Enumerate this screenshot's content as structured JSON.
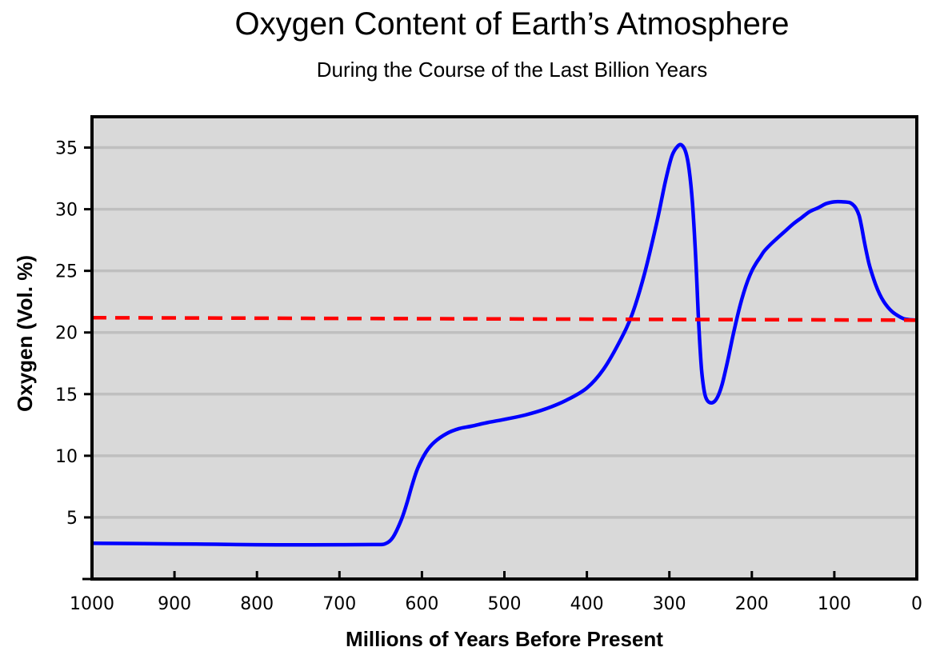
{
  "chart_data": {
    "type": "line",
    "title": "Oxygen Content of Earth’s Atmosphere",
    "subtitle": "During the Course of the Last Billion Years",
    "xlabel": "Millions of Years Before Present",
    "ylabel": "Oxygen (Vol. %)",
    "xlim": [
      1000,
      0
    ],
    "ylim": [
      0,
      37.5
    ],
    "x_ticks": [
      1000,
      900,
      800,
      700,
      600,
      500,
      400,
      300,
      200,
      100,
      0
    ],
    "y_ticks": [
      5,
      10,
      15,
      20,
      25,
      30,
      35
    ],
    "grid": "horizontal",
    "series": [
      {
        "color": "#0000ff",
        "x": [
          1000,
          950,
          900,
          850,
          800,
          750,
          700,
          660,
          645,
          635,
          625,
          618,
          612,
          605,
          595,
          585,
          570,
          555,
          540,
          520,
          500,
          475,
          450,
          425,
          400,
          380,
          360,
          345,
          330,
          315,
          305,
          297,
          290,
          285,
          280,
          276,
          272,
          268,
          265,
          263,
          261,
          259,
          257,
          255,
          252,
          248,
          244,
          240,
          236,
          232,
          228,
          224,
          220,
          215,
          210,
          205,
          200,
          195,
          190,
          185,
          178,
          170,
          160,
          150,
          140,
          130,
          120,
          110,
          100,
          90,
          82,
          78,
          74,
          70,
          67,
          64,
          61,
          58,
          55,
          50,
          45,
          40,
          35,
          30,
          25,
          20,
          15,
          10,
          5,
          0
        ],
        "y": [
          2.9,
          2.88,
          2.85,
          2.82,
          2.78,
          2.77,
          2.78,
          2.8,
          2.85,
          3.4,
          4.8,
          6.2,
          7.6,
          9.0,
          10.3,
          11.1,
          11.8,
          12.2,
          12.4,
          12.7,
          12.95,
          13.3,
          13.8,
          14.5,
          15.5,
          17.0,
          19.3,
          21.5,
          24.8,
          29.0,
          32.2,
          34.3,
          35.1,
          35.2,
          34.6,
          33.2,
          30.5,
          26.0,
          21.5,
          19.0,
          17.0,
          15.8,
          15.0,
          14.6,
          14.35,
          14.3,
          14.5,
          15.0,
          15.8,
          16.9,
          18.1,
          19.4,
          20.6,
          22.0,
          23.2,
          24.2,
          25.0,
          25.6,
          26.1,
          26.6,
          27.1,
          27.6,
          28.2,
          28.8,
          29.3,
          29.8,
          30.1,
          30.45,
          30.6,
          30.6,
          30.55,
          30.4,
          30.1,
          29.5,
          28.6,
          27.5,
          26.5,
          25.6,
          24.9,
          23.9,
          23.1,
          22.5,
          22.05,
          21.7,
          21.45,
          21.25,
          21.1,
          21.05,
          21.02,
          21.0
        ]
      },
      {
        "color": "#ff0000",
        "style": "dashed",
        "x": [
          1000,
          0
        ],
        "y": [
          21.2,
          21.0
        ]
      }
    ]
  }
}
